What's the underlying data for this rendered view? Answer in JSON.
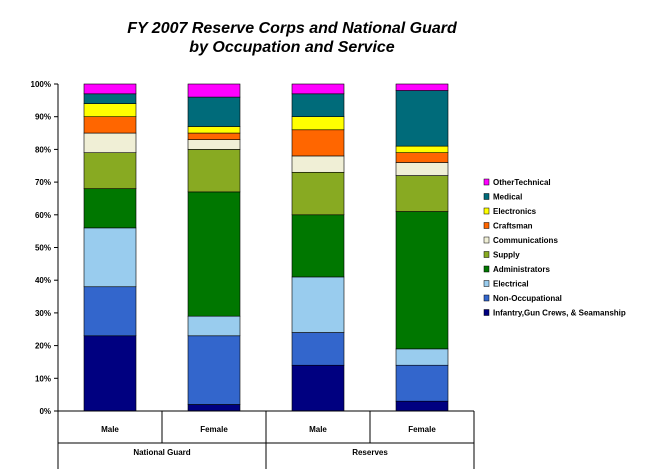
{
  "chart_data": {
    "type": "bar",
    "stacked": true,
    "percent_stacked": true,
    "title_lines": [
      "FY 2007 Reserve Corps and National Guard",
      "by Occupation and Service"
    ],
    "categories": [
      "Male",
      "Female",
      "Male",
      "Female"
    ],
    "groups": [
      {
        "label": "National Guard",
        "categories": [
          "Male",
          "Female"
        ]
      },
      {
        "label": "Reserves",
        "categories": [
          "Male",
          "Female"
        ]
      }
    ],
    "ylim": [
      0,
      100
    ],
    "yticks": [
      "0%",
      "10%",
      "20%",
      "30%",
      "40%",
      "50%",
      "60%",
      "70%",
      "80%",
      "90%",
      "100%"
    ],
    "grid": false,
    "legend_position": "right",
    "series": [
      {
        "name": "Infantry,Gun Crews, & Seamanship",
        "color": "#000080",
        "values": [
          23,
          2,
          14,
          3
        ]
      },
      {
        "name": "Non-Occupational",
        "color": "#3366cc",
        "values": [
          15,
          21,
          10,
          11
        ]
      },
      {
        "name": "Electrical",
        "color": "#99ccee",
        "values": [
          18,
          6,
          17,
          5
        ]
      },
      {
        "name": "Administrators",
        "color": "#007700",
        "values": [
          12,
          38,
          19,
          42
        ]
      },
      {
        "name": "Supply",
        "color": "#88aa22",
        "values": [
          11,
          13,
          13,
          11
        ]
      },
      {
        "name": "Communications",
        "color": "#f0efd6",
        "values": [
          6,
          3,
          5,
          4
        ]
      },
      {
        "name": "Craftsman",
        "color": "#ff6600",
        "values": [
          5,
          2,
          8,
          3
        ]
      },
      {
        "name": "Electronics",
        "color": "#ffff00",
        "values": [
          4,
          2,
          4,
          2
        ]
      },
      {
        "name": "Medical",
        "color": "#006b7a",
        "values": [
          3,
          9,
          7,
          17
        ]
      },
      {
        "name": "OtherTechnical",
        "color": "#ff00ff",
        "values": [
          3,
          4,
          3,
          2
        ]
      }
    ]
  }
}
